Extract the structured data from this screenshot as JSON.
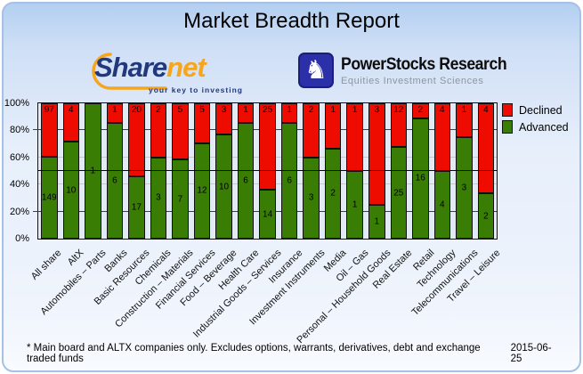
{
  "header": {
    "title": "Market Breadth Report"
  },
  "logos": {
    "sharenet": {
      "name_part1": "Share",
      "name_part2": "net",
      "tagline": "your key to investing",
      "navy": "#22387d",
      "orange": "#f5a61d"
    },
    "powerstocks": {
      "title": "PowerStocks  Research",
      "subtitle": "Equities Investment Sciences",
      "knight_icon": "chess-knight",
      "blue": "#2b2fa8"
    }
  },
  "chart_data": {
    "type": "bar",
    "stacked": true,
    "stack_mode": "percent",
    "title": "Market Breadth Report",
    "categories": [
      "All share",
      "AltX",
      "Automobiles – Parts",
      "Banks",
      "Basic Resources",
      "Chemicals",
      "Construction – Materials",
      "Financial Services",
      "Food – Beverage",
      "Health Care",
      "Industrial Goods – Services",
      "Insurance",
      "Investment Instruments",
      "Media",
      "Oil – Gas",
      "Personal – Household Goods",
      "Real Estate",
      "Retail",
      "Technology",
      "Telecommunications",
      "Travel – Leisure"
    ],
    "series": [
      {
        "name": "Declined",
        "color": "#ee0c00",
        "values": [
          97,
          4,
          0,
          1,
          20,
          2,
          5,
          5,
          3,
          1,
          25,
          1,
          2,
          1,
          1,
          3,
          12,
          2,
          4,
          1,
          4
        ]
      },
      {
        "name": "Advanced",
        "color": "#3a7d04",
        "values": [
          149,
          10,
          1,
          6,
          17,
          3,
          7,
          12,
          10,
          6,
          14,
          6,
          3,
          2,
          1,
          1,
          25,
          16,
          4,
          3,
          2
        ]
      }
    ],
    "y_ticks": [
      "0%",
      "20%",
      "40%",
      "60%",
      "80%",
      "100%"
    ],
    "ylim": [
      0,
      100
    ],
    "ylabel": "",
    "xlabel": "",
    "grid": {
      "navy_lines_percent": [
        20,
        80
      ],
      "gray_lines_percent": [
        40,
        60
      ],
      "navy_color": "#333399",
      "gray_color": "#c4c9ce"
    },
    "midline_percent": 50,
    "legend_position": "top-right"
  },
  "footer": {
    "note": "* Main board and ALTX companies only. Excludes options, warrants, derivatives, debt and exchange traded funds",
    "date": "2015-06-25"
  }
}
